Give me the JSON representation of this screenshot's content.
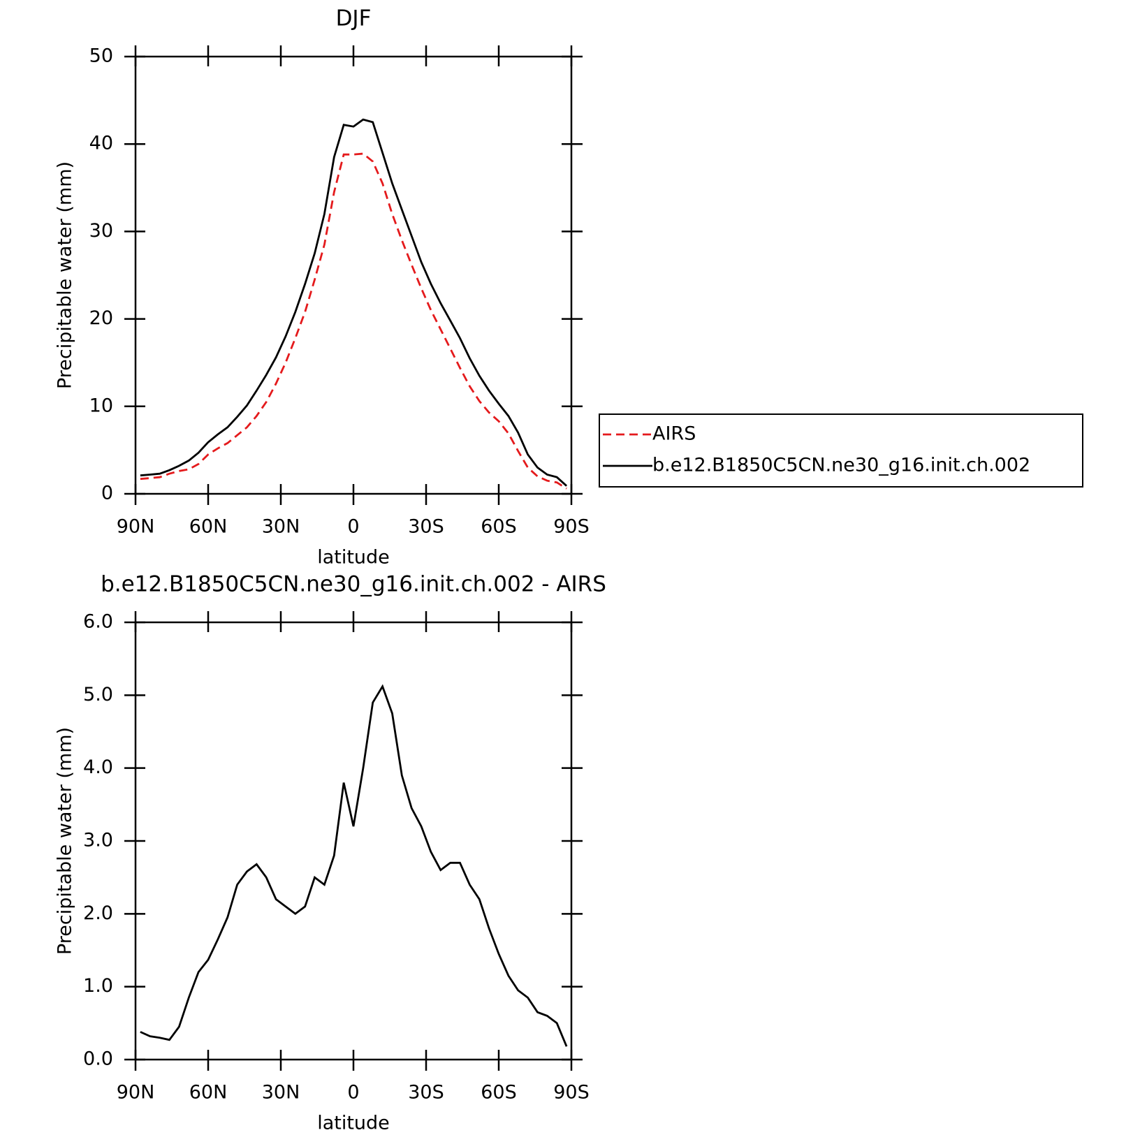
{
  "chart_data": [
    {
      "type": "line",
      "title": "DJF",
      "xlabel": "latitude",
      "ylabel": "Precipitable water (mm)",
      "x": [
        88,
        84,
        80,
        76,
        72,
        68,
        64,
        60,
        56,
        52,
        48,
        44,
        40,
        36,
        32,
        28,
        24,
        20,
        16,
        12,
        8,
        4,
        0,
        -4,
        -8,
        -12,
        -16,
        -20,
        -24,
        -28,
        -32,
        -36,
        -40,
        -44,
        -48,
        -52,
        -56,
        -60,
        -64,
        -68,
        -72,
        -76,
        -80,
        -84,
        -88
      ],
      "xlim": [
        90,
        -90
      ],
      "xticks": [
        {
          "value": 90,
          "label": "90N"
        },
        {
          "value": 60,
          "label": "60N"
        },
        {
          "value": 30,
          "label": "30N"
        },
        0,
        {
          "value": -30,
          "label": "30S"
        },
        {
          "value": -60,
          "label": "60S"
        },
        {
          "value": -90,
          "label": "90S"
        }
      ],
      "ylim": [
        0,
        50
      ],
      "yticks": [
        0,
        10,
        20,
        30,
        40,
        50
      ],
      "legend": "right",
      "series": [
        {
          "name": "AIRS",
          "color": "#e41a1c",
          "linestyle": "dashed",
          "values": [
            1.7,
            1.8,
            1.9,
            2.3,
            2.6,
            2.8,
            3.4,
            4.5,
            5.2,
            5.8,
            6.7,
            7.6,
            8.9,
            10.5,
            12.6,
            15,
            17.8,
            20.8,
            24.5,
            28.5,
            34.5,
            38.8,
            38.8,
            38.9,
            38,
            35.5,
            32,
            29,
            26.2,
            23.5,
            21,
            18.8,
            16.6,
            14.4,
            12.3,
            10.6,
            9.3,
            8.3,
            6.9,
            4.9,
            3,
            2,
            1.5,
            1.3,
            0.6
          ]
        },
        {
          "name": "b.e12.B1850C5CN.ne30_g16.init.ch.002",
          "color": "#000000",
          "linestyle": "solid",
          "values": [
            2.1,
            2.2,
            2.3,
            2.7,
            3.2,
            3.8,
            4.7,
            5.9,
            6.8,
            7.6,
            8.8,
            10.1,
            11.8,
            13.6,
            15.6,
            18,
            20.8,
            24,
            27.5,
            32,
            38.5,
            42.2,
            42,
            42.8,
            42.5,
            39,
            35.5,
            32.5,
            29.5,
            26.5,
            24,
            21.8,
            19.8,
            17.8,
            15.5,
            13.5,
            11.8,
            10.3,
            8.9,
            7,
            4.5,
            3,
            2.2,
            1.9,
            0.9
          ]
        }
      ]
    },
    {
      "type": "line",
      "title": "b.e12.B1850C5CN.ne30_g16.init.ch.002 - AIRS",
      "xlabel": "latitude",
      "ylabel": "Precipitable water (mm)",
      "x": [
        88,
        84,
        80,
        76,
        72,
        68,
        64,
        60,
        56,
        52,
        48,
        44,
        40,
        36,
        32,
        28,
        24,
        20,
        16,
        12,
        8,
        4,
        0,
        -4,
        -8,
        -12,
        -16,
        -20,
        -24,
        -28,
        -32,
        -36,
        -40,
        -44,
        -48,
        -52,
        -56,
        -60,
        -64,
        -68,
        -72,
        -76,
        -80,
        -84,
        -88
      ],
      "xlim": [
        90,
        -90
      ],
      "xticks": [
        {
          "value": 90,
          "label": "90N"
        },
        {
          "value": 60,
          "label": "60N"
        },
        {
          "value": 30,
          "label": "30N"
        },
        0,
        {
          "value": -30,
          "label": "30S"
        },
        {
          "value": -60,
          "label": "60S"
        },
        {
          "value": -90,
          "label": "90S"
        }
      ],
      "ylim": [
        0,
        6
      ],
      "yticks": [
        {
          "value": 0,
          "label": "0.0"
        },
        {
          "value": 1,
          "label": "1.0"
        },
        {
          "value": 2,
          "label": "2.0"
        },
        {
          "value": 3,
          "label": "3.0"
        },
        {
          "value": 4,
          "label": "4.0"
        },
        {
          "value": 5,
          "label": "5.0"
        },
        {
          "value": 6,
          "label": "6.0"
        }
      ],
      "color": "#000000",
      "values": [
        0.38,
        0.32,
        0.3,
        0.27,
        0.45,
        0.85,
        1.2,
        1.37,
        1.65,
        1.95,
        2.4,
        2.58,
        2.68,
        2.5,
        2.2,
        2.1,
        2,
        2.1,
        2.5,
        2.4,
        2.8,
        3.8,
        3.2,
        4,
        4.9,
        5.12,
        4.75,
        3.9,
        3.45,
        3.2,
        2.85,
        2.6,
        2.7,
        2.7,
        2.4,
        2.2,
        1.8,
        1.45,
        1.15,
        0.95,
        0.85,
        0.65,
        0.6,
        0.5,
        0.18
      ]
    }
  ]
}
